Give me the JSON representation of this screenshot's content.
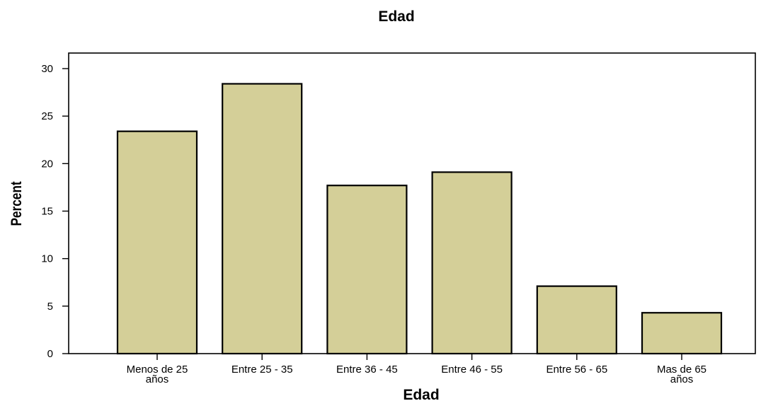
{
  "chart_data": {
    "type": "bar",
    "title": "Edad",
    "xlabel": "Edad",
    "ylabel": "Percent",
    "categories": [
      [
        "Menos de 25",
        "años"
      ],
      [
        "Entre 25 - 35"
      ],
      [
        "Entre 36 - 45"
      ],
      [
        "Entre 46 - 55"
      ],
      [
        "Entre 56 - 65"
      ],
      [
        "Mas de 65",
        "años"
      ]
    ],
    "values": [
      23.4,
      28.4,
      17.7,
      19.1,
      7.1,
      4.3
    ],
    "ylim": [
      0,
      31.5
    ],
    "yticks": [
      0,
      5,
      10,
      15,
      20,
      25,
      30
    ],
    "grid": false,
    "legend": "none",
    "colors": {
      "bar_fill": "#d4cf98",
      "bar_stroke": "#000000",
      "axis": "#000000",
      "background": "#ffffff"
    }
  }
}
